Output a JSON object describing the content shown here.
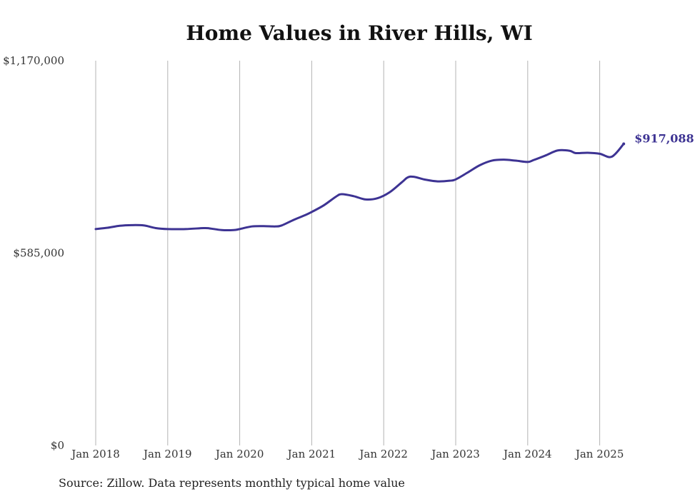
{
  "chart_data": {
    "type": "line",
    "title": "Home Values in River Hills, WI",
    "xlabel": "",
    "ylabel": "",
    "x_ticks": [
      "Jan 2018",
      "Jan 2019",
      "Jan 2020",
      "Jan 2021",
      "Jan 2022",
      "Jan 2023",
      "Jan 2024",
      "Jan 2025"
    ],
    "y_ticks": [
      "$0",
      "$585,000",
      "$1,170,000"
    ],
    "ylim": [
      0,
      1170000
    ],
    "grid": "vertical",
    "series": [
      {
        "color": "#3d3393",
        "end_label": "$917,088",
        "points": [
          [
            "2018-01",
            658000
          ],
          [
            "2018-03",
            662000
          ],
          [
            "2018-05",
            668000
          ],
          [
            "2018-07",
            670000
          ],
          [
            "2018-09",
            669000
          ],
          [
            "2018-11",
            661000
          ],
          [
            "2019-01",
            658000
          ],
          [
            "2019-04",
            658000
          ],
          [
            "2019-07",
            661000
          ],
          [
            "2019-08",
            660000
          ],
          [
            "2019-10",
            655000
          ],
          [
            "2019-12",
            655000
          ],
          [
            "2020-01",
            658000
          ],
          [
            "2020-03",
            666000
          ],
          [
            "2020-05",
            667000
          ],
          [
            "2020-07",
            666000
          ],
          [
            "2020-08",
            669000
          ],
          [
            "2020-10",
            686000
          ],
          [
            "2020-12",
            701000
          ],
          [
            "2021-01",
            710000
          ],
          [
            "2021-03",
            730000
          ],
          [
            "2021-05",
            756000
          ],
          [
            "2021-06",
            764000
          ],
          [
            "2021-08",
            758000
          ],
          [
            "2021-10",
            748000
          ],
          [
            "2021-12",
            752000
          ],
          [
            "2022-02",
            770000
          ],
          [
            "2022-04",
            800000
          ],
          [
            "2022-05",
            815000
          ],
          [
            "2022-06",
            817000
          ],
          [
            "2022-08",
            808000
          ],
          [
            "2022-10",
            803000
          ],
          [
            "2022-12",
            805000
          ],
          [
            "2023-01",
            809000
          ],
          [
            "2023-03",
            830000
          ],
          [
            "2023-05",
            852000
          ],
          [
            "2023-07",
            866000
          ],
          [
            "2023-09",
            869000
          ],
          [
            "2023-11",
            866000
          ],
          [
            "2024-01",
            862000
          ],
          [
            "2024-02",
            868000
          ],
          [
            "2024-04",
            882000
          ],
          [
            "2024-06",
            897000
          ],
          [
            "2024-08",
            896000
          ],
          [
            "2024-09",
            889000
          ],
          [
            "2024-11",
            890000
          ],
          [
            "2025-01",
            887000
          ],
          [
            "2025-03",
            878000
          ],
          [
            "2025-05",
            917088
          ]
        ]
      }
    ]
  },
  "source_note": "Source: Zillow. Data represents monthly typical home value"
}
